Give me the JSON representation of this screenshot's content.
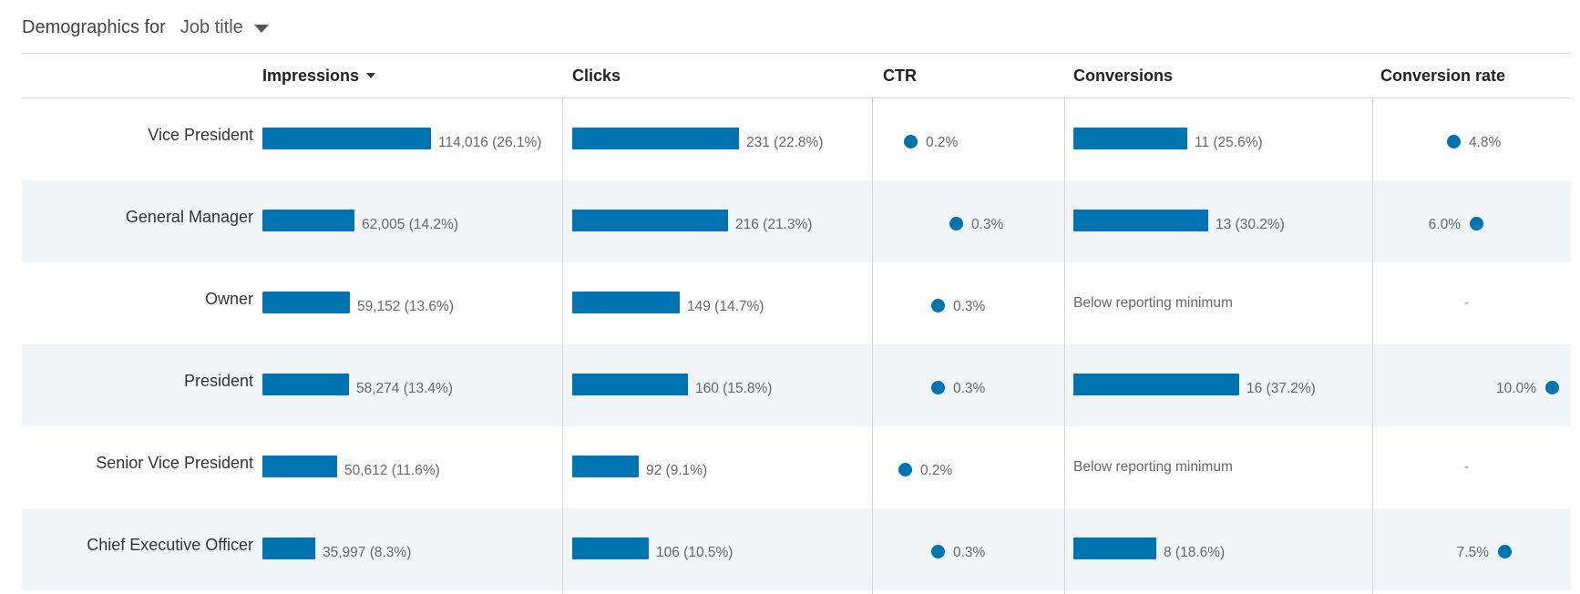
{
  "header": {
    "label": "Demographics for",
    "dropdown_value": "Job title"
  },
  "columns": [
    {
      "label": "Impressions",
      "sorted": true
    },
    {
      "label": "Clicks"
    },
    {
      "label": "CTR"
    },
    {
      "label": "Conversions"
    },
    {
      "label": "Conversion rate"
    }
  ],
  "accent_color": "#0073b1",
  "rows": [
    {
      "label": "Vice President",
      "impressions": {
        "value": 114016,
        "text": "114,016 (26.1%)"
      },
      "clicks": {
        "value": 231,
        "text": "231 (22.8%)"
      },
      "ctr": {
        "value": 0.2,
        "text": "0.2%"
      },
      "conversions": {
        "value": 11,
        "text": "11 (25.6%)"
      },
      "conversion_rate": {
        "value": 4.8,
        "text": "4.8%"
      }
    },
    {
      "label": "General Manager",
      "impressions": {
        "value": 62005,
        "text": "62,005 (14.2%)"
      },
      "clicks": {
        "value": 216,
        "text": "216 (21.3%)"
      },
      "ctr": {
        "value": 0.3,
        "text": "0.3%"
      },
      "conversions": {
        "value": 13,
        "text": "13 (30.2%)"
      },
      "conversion_rate": {
        "value": 6.0,
        "text": "6.0%"
      }
    },
    {
      "label": "Owner",
      "impressions": {
        "value": 59152,
        "text": "59,152 (13.6%)"
      },
      "clicks": {
        "value": 149,
        "text": "149 (14.7%)"
      },
      "ctr": {
        "value": 0.3,
        "text": "0.3%"
      },
      "conversions": {
        "value": null,
        "text": "Below reporting minimum"
      },
      "conversion_rate": {
        "value": null,
        "text": "-"
      }
    },
    {
      "label": "President",
      "impressions": {
        "value": 58274,
        "text": "58,274 (13.4%)"
      },
      "clicks": {
        "value": 160,
        "text": "160 (15.8%)"
      },
      "ctr": {
        "value": 0.3,
        "text": "0.3%"
      },
      "conversions": {
        "value": 16,
        "text": "16 (37.2%)"
      },
      "conversion_rate": {
        "value": 10.0,
        "text": "10.0%"
      }
    },
    {
      "label": "Senior Vice President",
      "impressions": {
        "value": 50612,
        "text": "50,612 (11.6%)"
      },
      "clicks": {
        "value": 92,
        "text": "92 (9.1%)"
      },
      "ctr": {
        "value": 0.2,
        "text": "0.2%"
      },
      "conversions": {
        "value": null,
        "text": "Below reporting minimum"
      },
      "conversion_rate": {
        "value": null,
        "text": "-"
      }
    },
    {
      "label": "Chief Executive Officer",
      "impressions": {
        "value": 35997,
        "text": "35,997 (8.3%)"
      },
      "clicks": {
        "value": 106,
        "text": "106 (10.5%)"
      },
      "ctr": {
        "value": 0.3,
        "text": "0.3%"
      },
      "conversions": {
        "value": 8,
        "text": "8 (18.6%)"
      },
      "conversion_rate": {
        "value": 7.5,
        "text": "7.5%"
      }
    }
  ]
}
